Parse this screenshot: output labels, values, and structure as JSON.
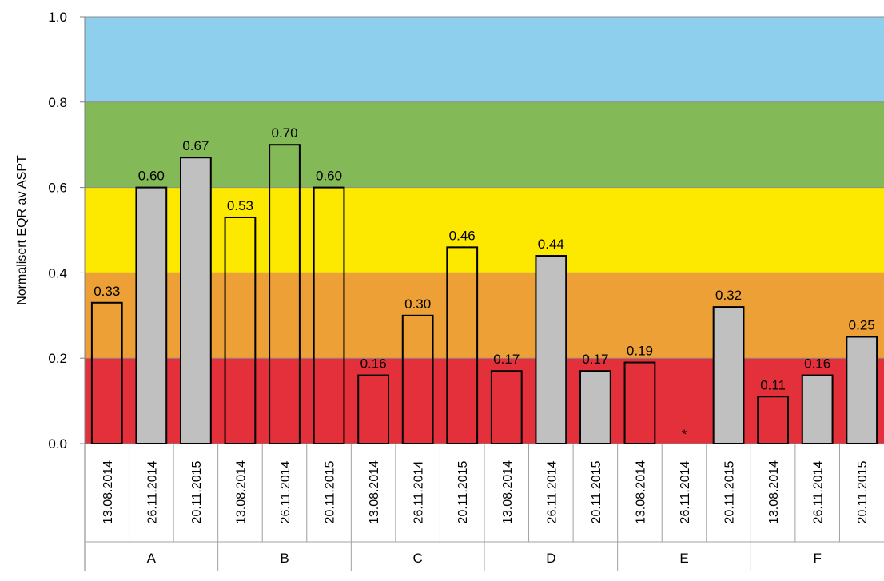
{
  "chart_data": {
    "type": "bar",
    "title": "",
    "xlabel": "",
    "ylabel": "Normalisert EQR av ASPT",
    "ylim": [
      0,
      1.0
    ],
    "y_ticks": [
      "0.0",
      "0.2",
      "0.4",
      "0.6",
      "0.8",
      "1.0"
    ],
    "grid": false,
    "background_bands": [
      {
        "from": 0.0,
        "to": 0.2,
        "color": "#e3303b"
      },
      {
        "from": 0.2,
        "to": 0.4,
        "color": "#eca035"
      },
      {
        "from": 0.4,
        "to": 0.6,
        "color": "#fde800"
      },
      {
        "from": 0.6,
        "to": 0.8,
        "color": "#84b957"
      },
      {
        "from": 0.8,
        "to": 1.0,
        "color": "#8fcfee"
      }
    ],
    "groups": [
      "A",
      "B",
      "C",
      "D",
      "E",
      "F"
    ],
    "dates": [
      "13.08.2014",
      "26.11.2014",
      "20.11.2015"
    ],
    "categories": [
      "13.08.2014",
      "26.11.2014",
      "20.11.2015",
      "13.08.2014",
      "26.11.2014",
      "20.11.2015",
      "13.08.2014",
      "26.11.2014",
      "20.11.2015",
      "13.08.2014",
      "26.11.2014",
      "20.11.2015",
      "13.08.2014",
      "26.11.2014",
      "20.11.2015",
      "13.08.2014",
      "26.11.2014",
      "20.11.2015"
    ],
    "values": [
      0.33,
      0.6,
      0.67,
      0.53,
      0.7,
      0.6,
      0.16,
      0.3,
      0.46,
      0.17,
      0.44,
      0.17,
      0.19,
      null,
      0.32,
      0.11,
      0.16,
      0.25
    ],
    "data_labels": [
      "0.33",
      "0.60",
      "0.67",
      "0.53",
      "0.70",
      "0.60",
      "0.16",
      "0.30",
      "0.46",
      "0.17",
      "0.44",
      "0.17",
      "0.19",
      "*",
      "0.32",
      "0.11",
      "0.16",
      "0.25"
    ],
    "bar_styles": [
      "open",
      "grey",
      "grey",
      "open",
      "open",
      "open",
      "open",
      "open",
      "open",
      "open",
      "grey",
      "grey",
      "open",
      "none",
      "grey",
      "open",
      "grey",
      "grey"
    ],
    "colors": {
      "grey_fill": "#c0c0c0",
      "outline": "#000000"
    }
  }
}
